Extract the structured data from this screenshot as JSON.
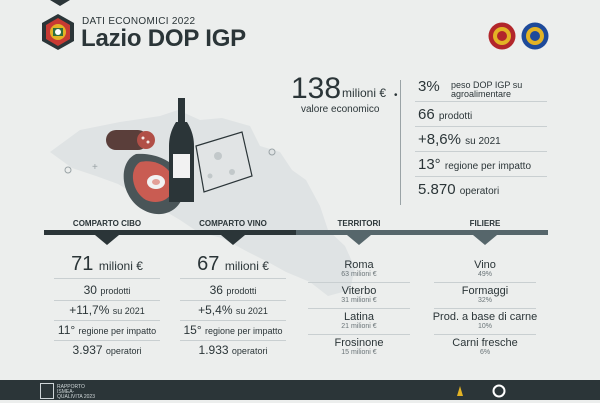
{
  "header": {
    "kicker": "DATI ECONOMICI 2022",
    "title": "Lazio DOP IGP"
  },
  "hero": {
    "value": "138",
    "unit": "milioni €",
    "label": "valore economico"
  },
  "stats": [
    {
      "big": "3%",
      "small": "peso DOP IGP su agroalimentare"
    },
    {
      "big": "66",
      "small": "prodotti"
    },
    {
      "big": "+8,6%",
      "small": "su 2021"
    },
    {
      "big": "13°",
      "small": "regione per impatto"
    },
    {
      "big": "5.870",
      "small": "operatori"
    }
  ],
  "cibo": {
    "header": "COMPARTO CIBO",
    "value": "71",
    "unit": "milioni €",
    "prodotti": "30",
    "prodotti_label": "prodotti",
    "growth": "+11,7%",
    "growth_label": "su 2021",
    "rank": "11°",
    "rank_label": "regione per impatto",
    "operatori": "3.937",
    "operatori_label": "operatori"
  },
  "vino": {
    "header": "COMPARTO VINO",
    "value": "67",
    "unit": "milioni €",
    "prodotti": "36",
    "prodotti_label": "prodotti",
    "growth": "+5,4%",
    "growth_label": "su 2021",
    "rank": "15°",
    "rank_label": "regione per impatto",
    "operatori": "1.933",
    "operatori_label": "operatori"
  },
  "territori": {
    "header": "TERRITORI",
    "items": [
      {
        "name": "Roma",
        "value": "63 milioni €"
      },
      {
        "name": "Viterbo",
        "value": "31 milioni €"
      },
      {
        "name": "Latina",
        "value": "21 milioni €"
      },
      {
        "name": "Frosinone",
        "value": "15 milioni €"
      }
    ]
  },
  "filiere": {
    "header": "FILIERE",
    "items": [
      {
        "name": "Vino",
        "value": "49%"
      },
      {
        "name": "Formaggi",
        "value": "32%"
      },
      {
        "name": "Prod. a base di carne",
        "value": "10%"
      },
      {
        "name": "Carni fresche",
        "value": "6%"
      }
    ]
  },
  "footer": {
    "left_text": "RAPPORTO ISMEA-QUALIVITA 2023"
  },
  "colors": {
    "dark": "#2b3538",
    "background": "#eceeed",
    "dop_seal": "#b2262b",
    "igp_seal": "#1e4a9a",
    "gold": "#e3b325"
  }
}
